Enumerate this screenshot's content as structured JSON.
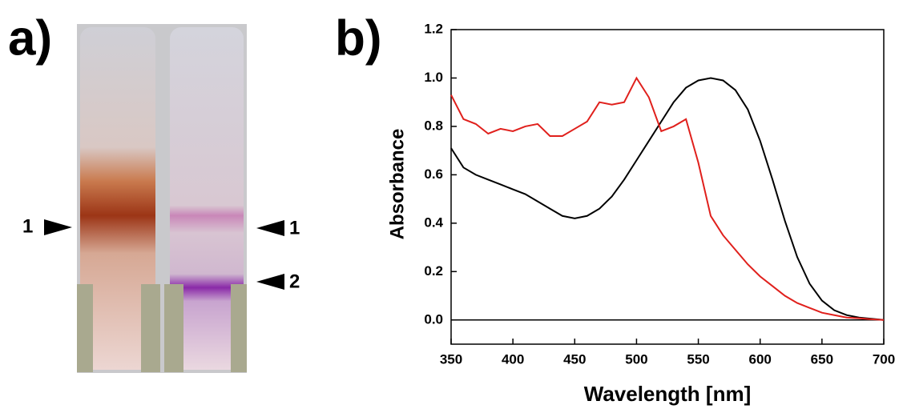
{
  "panel_a": {
    "label": "a)",
    "band_labels": [
      "1",
      "1",
      "2"
    ]
  },
  "chart_data": {
    "type": "line",
    "panel_label": "b)",
    "x_label": "Wavelength [nm]",
    "y_label": "Absorbance",
    "x": [
      350,
      360,
      370,
      380,
      390,
      400,
      410,
      420,
      430,
      440,
      450,
      460,
      470,
      480,
      490,
      500,
      510,
      520,
      530,
      540,
      550,
      560,
      570,
      580,
      590,
      600,
      610,
      620,
      630,
      640,
      650,
      660,
      670,
      680,
      690,
      700
    ],
    "series": [
      {
        "color": "#000000",
        "values": [
          0.71,
          0.63,
          0.6,
          0.58,
          0.56,
          0.54,
          0.52,
          0.49,
          0.46,
          0.43,
          0.42,
          0.43,
          0.46,
          0.51,
          0.58,
          0.66,
          0.74,
          0.82,
          0.9,
          0.96,
          0.99,
          1.0,
          0.99,
          0.95,
          0.87,
          0.74,
          0.58,
          0.41,
          0.26,
          0.15,
          0.08,
          0.04,
          0.02,
          0.01,
          0.005,
          0
        ]
      },
      {
        "color": "#e0201c",
        "values": [
          0.93,
          0.83,
          0.81,
          0.77,
          0.79,
          0.78,
          0.8,
          0.81,
          0.76,
          0.76,
          0.79,
          0.82,
          0.9,
          0.89,
          0.9,
          1.0,
          0.92,
          0.78,
          0.8,
          0.83,
          0.65,
          0.43,
          0.35,
          0.29,
          0.23,
          0.18,
          0.14,
          0.1,
          0.07,
          0.05,
          0.03,
          0.02,
          0.01,
          0.007,
          0.003,
          0
        ]
      }
    ],
    "xlim": [
      350,
      700
    ],
    "xticks": [
      350,
      400,
      450,
      500,
      550,
      600,
      650,
      700
    ],
    "ylim": [
      -0.1,
      1.2
    ],
    "yticks": [
      {
        "value": 0,
        "label": "0.0"
      },
      0.2,
      0.4,
      0.6,
      0.8,
      {
        "value": 1,
        "label": "1.0"
      },
      1.2
    ]
  }
}
